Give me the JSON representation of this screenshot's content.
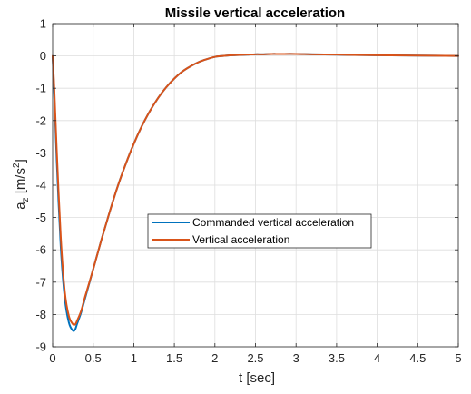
{
  "chart_data": {
    "type": "line",
    "title": "Missile vertical acceleration",
    "xlabel": "t [sec]",
    "ylabel": {
      "main": "a",
      "subscript": "z",
      "unit_open": " [m/s",
      "superscript": "2",
      "unit_close": "]"
    },
    "xlim": [
      0,
      5
    ],
    "ylim": [
      -9,
      1
    ],
    "xticks": [
      0,
      0.5,
      1,
      1.5,
      2,
      2.5,
      3,
      3.5,
      4,
      4.5,
      5
    ],
    "xtick_labels": [
      "0",
      "0.5",
      "1",
      "1.5",
      "2",
      "2.5",
      "3",
      "3.5",
      "4",
      "4.5",
      "5"
    ],
    "yticks": [
      -9,
      -8,
      -7,
      -6,
      -5,
      -4,
      -3,
      -2,
      -1,
      0,
      1
    ],
    "ytick_labels": [
      "-9",
      "-8",
      "-7",
      "-6",
      "-5",
      "-4",
      "-3",
      "-2",
      "-1",
      "0",
      "1"
    ],
    "grid": true,
    "legend_position": "center",
    "series": [
      {
        "name": "Commanded vertical acceleration",
        "color": "#0072BD",
        "x": [
          0,
          0.02,
          0.05,
          0.1,
          0.15,
          0.2,
          0.25,
          0.28,
          0.3,
          0.35,
          0.4,
          0.5,
          0.6,
          0.7,
          0.8,
          0.9,
          1.0,
          1.1,
          1.2,
          1.3,
          1.4,
          1.5,
          1.6,
          1.7,
          1.8,
          1.9,
          2.0,
          2.1,
          2.2,
          2.3,
          2.4,
          2.5,
          2.6,
          2.7,
          2.8,
          3.0,
          3.2,
          3.5,
          4.0,
          4.5,
          5.0
        ],
        "y": [
          0,
          -1.2,
          -3.2,
          -5.9,
          -7.5,
          -8.25,
          -8.5,
          -8.45,
          -8.3,
          -7.95,
          -7.5,
          -6.6,
          -5.7,
          -4.85,
          -4.05,
          -3.35,
          -2.72,
          -2.17,
          -1.7,
          -1.3,
          -0.97,
          -0.7,
          -0.48,
          -0.32,
          -0.19,
          -0.1,
          -0.03,
          0.0,
          0.02,
          0.03,
          0.04,
          0.05,
          0.05,
          0.06,
          0.06,
          0.06,
          0.05,
          0.04,
          0.02,
          0.01,
          0.0
        ]
      },
      {
        "name": "Vertical acceleration",
        "color": "#D95319",
        "x": [
          0,
          0.02,
          0.05,
          0.1,
          0.15,
          0.2,
          0.25,
          0.28,
          0.3,
          0.35,
          0.4,
          0.5,
          0.6,
          0.7,
          0.8,
          0.9,
          1.0,
          1.1,
          1.2,
          1.3,
          1.4,
          1.5,
          1.6,
          1.7,
          1.8,
          1.9,
          2.0,
          2.1,
          2.2,
          2.3,
          2.4,
          2.5,
          2.6,
          2.7,
          2.8,
          3.0,
          3.2,
          3.5,
          4.0,
          4.5,
          5.0
        ],
        "y": [
          0,
          -1.0,
          -2.9,
          -5.6,
          -7.3,
          -8.05,
          -8.3,
          -8.3,
          -8.2,
          -7.9,
          -7.45,
          -6.6,
          -5.7,
          -4.85,
          -4.05,
          -3.35,
          -2.72,
          -2.17,
          -1.7,
          -1.3,
          -0.97,
          -0.7,
          -0.48,
          -0.32,
          -0.19,
          -0.1,
          -0.03,
          0.0,
          0.02,
          0.03,
          0.04,
          0.05,
          0.05,
          0.06,
          0.06,
          0.06,
          0.05,
          0.04,
          0.02,
          0.01,
          0.0
        ]
      }
    ]
  }
}
